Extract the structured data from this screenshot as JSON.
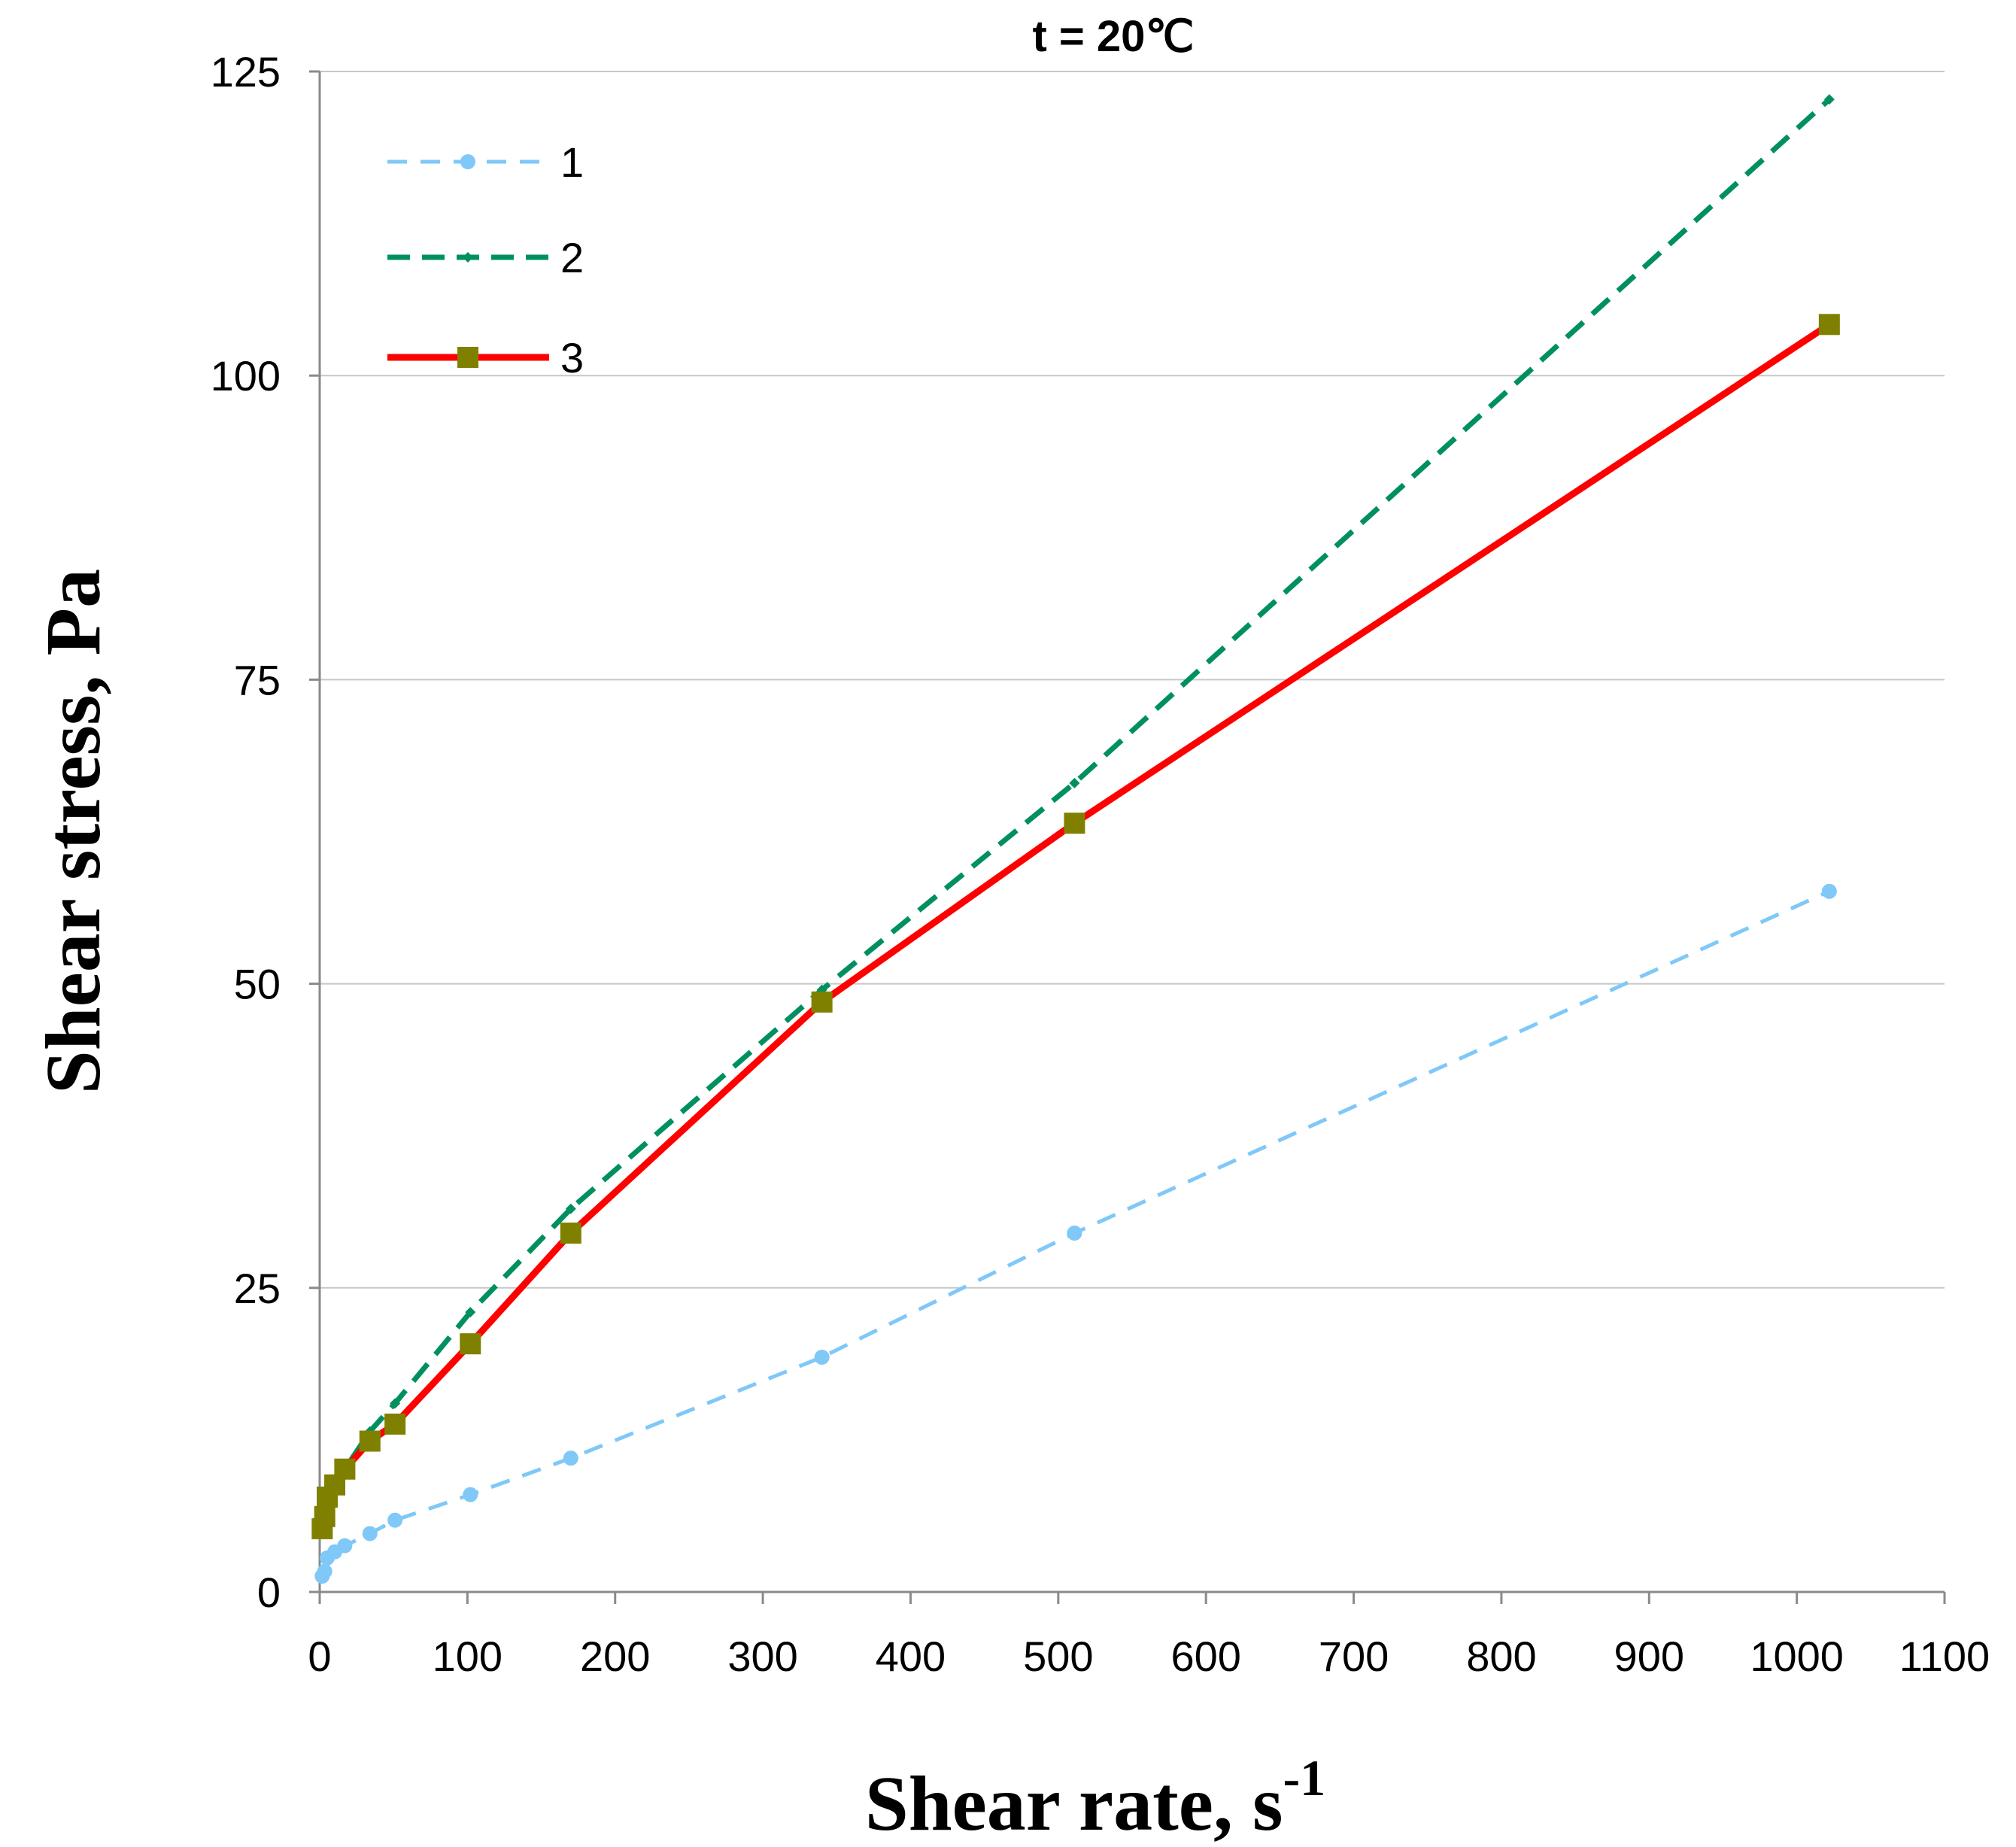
{
  "chart_data": {
    "type": "line",
    "title": "t = 20℃",
    "xlabel": "Shear rate, s",
    "xlabel_superscript": "-1",
    "ylabel": "Shear stress, Pa",
    "xlim": [
      0,
      1100
    ],
    "ylim": [
      0,
      125
    ],
    "xticks": [
      0,
      100,
      200,
      300,
      400,
      500,
      600,
      700,
      800,
      900,
      1000,
      1100
    ],
    "yticks": [
      0,
      25,
      50,
      75,
      100,
      125
    ],
    "grid": "horizontal",
    "legend_position": "top-left",
    "series": [
      {
        "name": "1",
        "color": "#7fc8f8",
        "line_style": "dashed",
        "marker": "circle",
        "x": [
          1.7,
          3.4,
          5.1,
          10.2,
          17,
          34,
          51,
          102,
          170,
          340,
          511,
          1022
        ],
        "y": [
          1.3,
          1.7,
          2.8,
          3.3,
          3.8,
          4.8,
          5.9,
          8,
          11,
          19.3,
          29.5,
          57.6
        ]
      },
      {
        "name": "2",
        "color": "#009060",
        "line_style": "dashed",
        "marker": "diamond",
        "x": [
          1.7,
          3.4,
          5.1,
          10.2,
          17,
          34,
          51,
          102,
          170,
          340,
          511,
          1022
        ],
        "y": [
          5.5,
          6.5,
          7.7,
          8.8,
          10.1,
          13.2,
          15.5,
          23,
          31.5,
          49.5,
          66.5,
          122.7
        ]
      },
      {
        "name": "3",
        "color": "#ff0000",
        "marker_color": "#808000",
        "line_style": "solid",
        "marker": "square",
        "x": [
          1.7,
          3.4,
          5.1,
          10.2,
          17,
          34,
          51,
          102,
          170,
          340,
          511,
          1022
        ],
        "y": [
          5.2,
          6.2,
          7.8,
          8.8,
          10.1,
          12.4,
          13.8,
          20.4,
          29.5,
          48.5,
          63.2,
          104.2
        ]
      }
    ]
  }
}
